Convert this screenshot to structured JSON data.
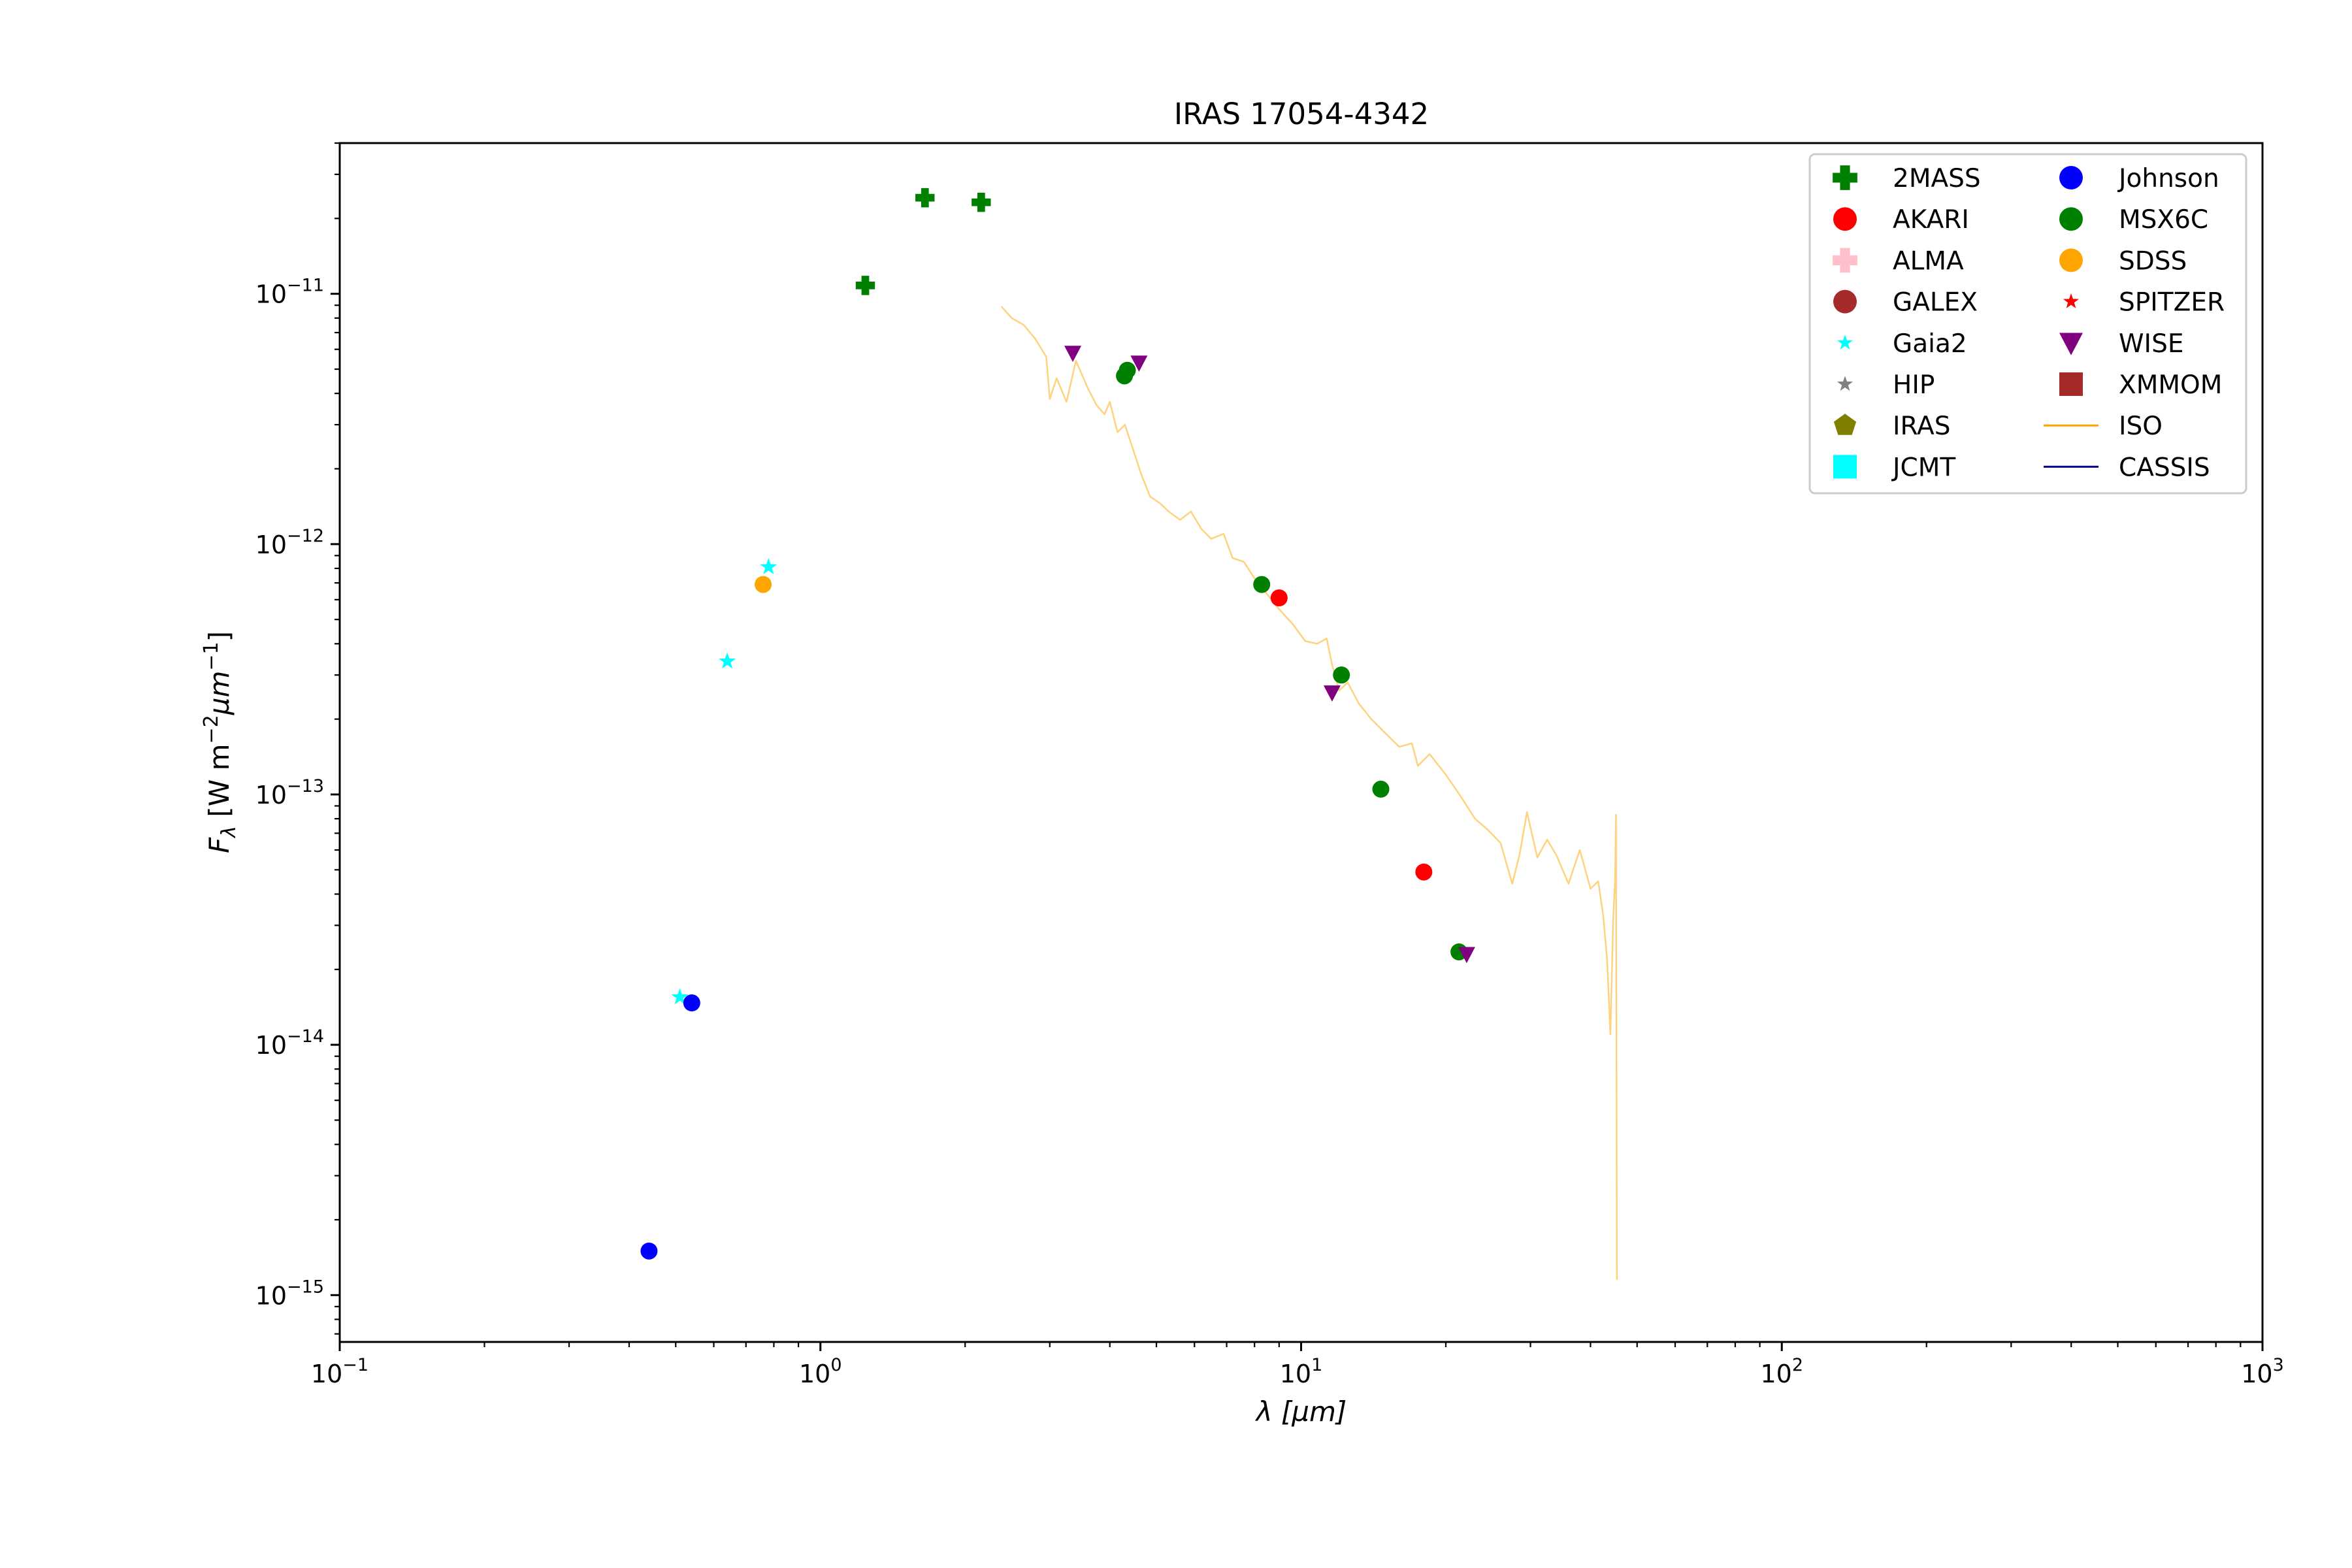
{
  "chart_data": {
    "type": "scatter",
    "title": "IRAS 17054-4342",
    "xlabel": "λ [μm]",
    "ylabel": "Fλ [W m⁻²μm⁻¹]",
    "xscale": "log",
    "yscale": "log",
    "xlim": [
      0.1,
      1000
    ],
    "ylim": [
      6.5e-16,
      4e-11
    ],
    "x_ticks": [
      {
        "value": 0.1,
        "mantissa": "10",
        "exp": "−1"
      },
      {
        "value": 1,
        "mantissa": "10",
        "exp": "0"
      },
      {
        "value": 10,
        "mantissa": "10",
        "exp": "1"
      },
      {
        "value": 100,
        "mantissa": "10",
        "exp": "2"
      },
      {
        "value": 1000,
        "mantissa": "10",
        "exp": "3"
      }
    ],
    "y_ticks": [
      {
        "value": 1e-15,
        "mantissa": "10",
        "exp": "−15"
      },
      {
        "value": 1e-14,
        "mantissa": "10",
        "exp": "−14"
      },
      {
        "value": 1e-13,
        "mantissa": "10",
        "exp": "−13"
      },
      {
        "value": 1e-12,
        "mantissa": "10",
        "exp": "−12"
      },
      {
        "value": 1e-11,
        "mantissa": "10",
        "exp": "−11"
      }
    ],
    "legend_position": "top-right",
    "legend_columns": 2,
    "series": [
      {
        "name": "2MASS",
        "marker": "plus",
        "color": "#008000",
        "x": [
          1.24,
          1.65,
          2.16
        ],
        "y": [
          1.08e-11,
          2.42e-11,
          2.32e-11
        ]
      },
      {
        "name": "AKARI",
        "marker": "circle",
        "color": "#ff0000",
        "x": [
          9.0,
          18.0
        ],
        "y": [
          6.1e-13,
          4.9e-14
        ]
      },
      {
        "name": "ALMA",
        "marker": "plus",
        "color": "#ffc0cb",
        "x": [],
        "y": []
      },
      {
        "name": "GALEX",
        "marker": "circle",
        "color": "#a52a2a",
        "x": [],
        "y": []
      },
      {
        "name": "Gaia2",
        "marker": "star",
        "color": "#00ffff",
        "x": [
          0.51,
          0.64,
          0.78
        ],
        "y": [
          1.55e-14,
          3.4e-13,
          8.1e-13
        ]
      },
      {
        "name": "HIP",
        "marker": "star",
        "color": "#808080",
        "x": [],
        "y": []
      },
      {
        "name": "IRAS",
        "marker": "pentagon",
        "color": "#808000",
        "x": [],
        "y": []
      },
      {
        "name": "JCMT",
        "marker": "square",
        "color": "#00ffff",
        "x": [],
        "y": []
      },
      {
        "name": "Johnson",
        "marker": "circle",
        "color": "#0000ff",
        "x": [
          0.44,
          0.54
        ],
        "y": [
          1.5e-15,
          1.47e-14
        ]
      },
      {
        "name": "MSX6C",
        "marker": "circle",
        "color": "#008000",
        "x": [
          4.29,
          4.35,
          8.28,
          12.13,
          14.65,
          21.3
        ],
        "y": [
          4.7e-12,
          4.95e-12,
          6.9e-13,
          3e-13,
          1.05e-13,
          2.35e-14
        ]
      },
      {
        "name": "SDSS",
        "marker": "circle",
        "color": "#ffa500",
        "x": [
          0.76
        ],
        "y": [
          6.9e-13
        ]
      },
      {
        "name": "SPITZER",
        "marker": "star",
        "color": "#ff0000",
        "x": [],
        "y": []
      },
      {
        "name": "WISE",
        "marker": "triangle-down",
        "color": "#800080",
        "x": [
          3.35,
          4.6,
          11.6,
          22.1
        ],
        "y": [
          5.8e-12,
          5.3e-12,
          2.55e-13,
          2.3e-14
        ]
      },
      {
        "name": "XMMOM",
        "marker": "square",
        "color": "#a52a2a",
        "x": [],
        "y": []
      },
      {
        "name": "ISO",
        "marker": "line",
        "color": "#ffa500",
        "x": [
          2.38,
          2.5,
          2.65,
          2.8,
          2.95,
          3.0,
          3.1,
          3.25,
          3.4,
          3.6,
          3.75,
          3.9,
          4.0,
          4.15,
          4.3,
          4.5,
          4.65,
          4.85,
          5.1,
          5.3,
          5.6,
          5.9,
          6.2,
          6.5,
          6.9,
          7.2,
          7.6,
          8.0,
          8.5,
          9.0,
          9.6,
          10.2,
          10.8,
          11.3,
          11.6,
          12.0,
          12.5,
          13.2,
          14.0,
          15.0,
          16.0,
          17.0,
          17.5,
          18.5,
          20.0,
          21.5,
          23.0,
          24.5,
          26.0,
          27.5,
          28.5,
          29.5,
          31.0,
          32.5,
          34.0,
          36.0,
          38.0,
          40.0,
          41.5,
          42.5,
          43.3,
          44.0,
          44.6,
          45.0,
          45.2,
          45.4
        ],
        "y": [
          8.9e-12,
          8e-12,
          7.5e-12,
          6.6e-12,
          5.6e-12,
          3.8e-12,
          4.6e-12,
          3.7e-12,
          5.4e-12,
          4.2e-12,
          3.6e-12,
          3.3e-12,
          3.7e-12,
          2.8e-12,
          3e-12,
          2.3e-12,
          1.9e-12,
          1.55e-12,
          1.45e-12,
          1.35e-12,
          1.25e-12,
          1.35e-12,
          1.15e-12,
          1.05e-12,
          1.1e-12,
          8.8e-13,
          8.5e-13,
          7.3e-13,
          6.3e-13,
          5.5e-13,
          4.8e-13,
          4.1e-13,
          4e-13,
          4.2e-13,
          3.3e-13,
          2.6e-13,
          2.8e-13,
          2.3e-13,
          2e-13,
          1.75e-13,
          1.55e-13,
          1.6e-13,
          1.3e-13,
          1.45e-13,
          1.2e-13,
          9.8e-14,
          8e-14,
          7.2e-14,
          6.4e-14,
          4.4e-14,
          5.8e-14,
          8.5e-14,
          5.6e-14,
          6.6e-14,
          5.7e-14,
          4.4e-14,
          6e-14,
          4.2e-14,
          4.5e-14,
          3.3e-14,
          2.2e-14,
          1.1e-14,
          3.2e-14,
          4.6e-14,
          8.3e-14,
          1.15e-15
        ]
      },
      {
        "name": "CASSIS",
        "marker": "line",
        "color": "#00008b",
        "x": [],
        "y": []
      }
    ]
  }
}
